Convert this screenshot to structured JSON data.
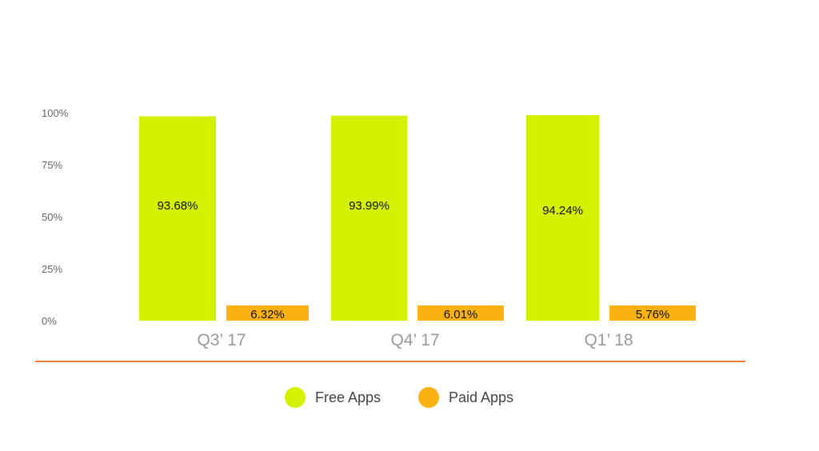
{
  "chart_data": {
    "type": "bar",
    "categories": [
      "Q3’ 17",
      "Q4’ 17",
      "Q1’ 18"
    ],
    "series": [
      {
        "name": "Free Apps",
        "values": [
          93.68,
          93.99,
          94.24
        ],
        "labels": [
          "93.68%",
          "93.99%",
          "94.24%"
        ],
        "color": "#d4f200"
      },
      {
        "name": "Paid Apps",
        "values": [
          6.32,
          6.01,
          5.76
        ],
        "labels": [
          "6.32%",
          "6.01%",
          "5.76%"
        ],
        "color": "#fbb110"
      }
    ],
    "yticks": [
      "0%",
      "25%",
      "50%",
      "75%",
      "100%"
    ],
    "ylim": [
      0,
      100
    ],
    "legend_position": "bottom",
    "grid": false,
    "baseline_color": "#f07c3c"
  }
}
